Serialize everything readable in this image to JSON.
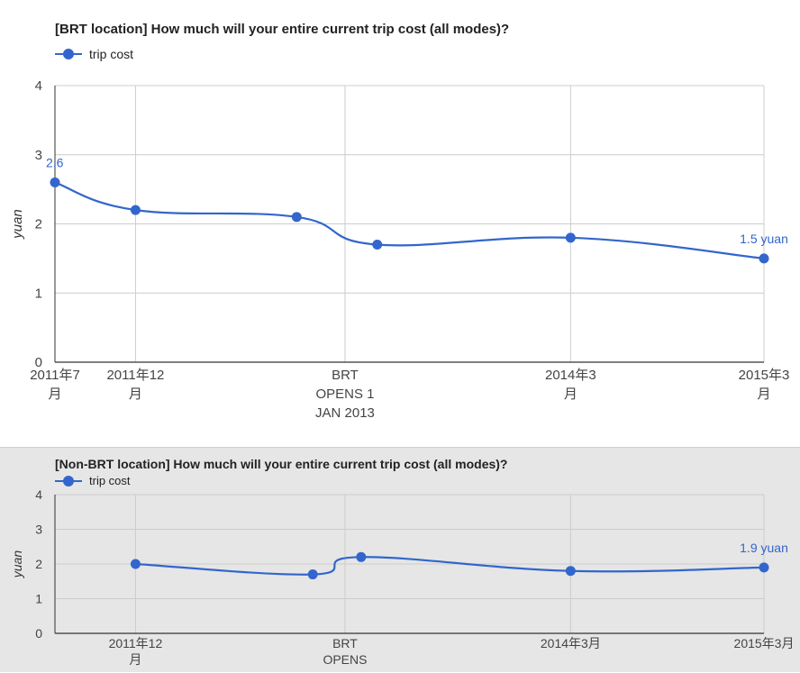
{
  "colors": {
    "series": "#3366cc",
    "grid": "#cccccc",
    "axis": "#333333",
    "text": "#444444"
  },
  "chart_data": [
    {
      "type": "line",
      "title": "[BRT location] How much will your entire current trip cost (all modes)?",
      "legend": {
        "position": "top-left",
        "label": "trip cost"
      },
      "ylabel": "yuan",
      "xlabel": "",
      "ylim": [
        0,
        4
      ],
      "yticks": [
        0,
        1,
        2,
        3,
        4
      ],
      "xlim": [
        "2011-07",
        "2015-03"
      ],
      "xticks": [
        {
          "x": "2011-07",
          "lines": [
            "2011年7",
            "月"
          ]
        },
        {
          "x": "2011-12",
          "lines": [
            "2011年12",
            "月"
          ]
        },
        {
          "x": "2013-01",
          "lines": [
            "BRT",
            "OPENS 1",
            "JAN 2013"
          ]
        },
        {
          "x": "2014-03",
          "lines": [
            "2014年3",
            "月"
          ]
        },
        {
          "x": "2015-03",
          "lines": [
            "2015年3",
            "月"
          ]
        }
      ],
      "grid": true,
      "smooth": true,
      "series": [
        {
          "name": "trip cost",
          "x": [
            "2011-07",
            "2011-12",
            "2012-10",
            "2013-03",
            "2014-03",
            "2015-03"
          ],
          "values": [
            2.6,
            2.2,
            2.1,
            1.7,
            1.8,
            1.5
          ]
        }
      ],
      "annotations": [
        {
          "point": 0,
          "text": "2.6"
        },
        {
          "point": 5,
          "text": "1.5 yuan"
        }
      ]
    },
    {
      "type": "line",
      "title": "[Non-BRT location] How much will your entire current trip cost (all modes)?",
      "legend": {
        "position": "top-left",
        "label": "trip cost"
      },
      "ylabel": "yuan",
      "xlabel": "",
      "ylim": [
        0,
        4
      ],
      "yticks": [
        0,
        1,
        2,
        3,
        4
      ],
      "xlim": [
        "2011-07",
        "2015-03"
      ],
      "xticks": [
        {
          "x": "2011-12",
          "lines": [
            "2011年12",
            "月"
          ]
        },
        {
          "x": "2013-01",
          "lines": [
            "BRT",
            "OPENS"
          ]
        },
        {
          "x": "2014-03",
          "lines": [
            "2014年3月"
          ]
        },
        {
          "x": "2015-03",
          "lines": [
            "2015年3月"
          ]
        }
      ],
      "grid": true,
      "smooth": true,
      "series": [
        {
          "name": "trip cost",
          "x": [
            "2011-12",
            "2012-11",
            "2013-02",
            "2014-03",
            "2015-03"
          ],
          "values": [
            2.0,
            1.7,
            2.2,
            1.8,
            1.9
          ]
        }
      ],
      "annotations": [
        {
          "point": 4,
          "text": "1.9 yuan"
        }
      ]
    }
  ]
}
